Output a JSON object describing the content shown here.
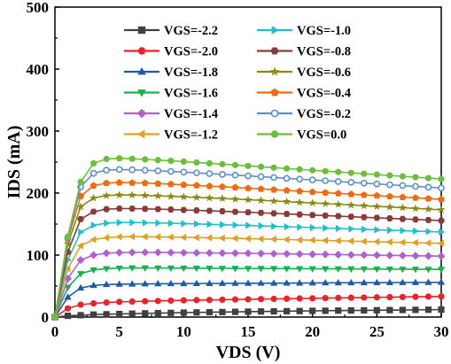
{
  "chart_data": {
    "type": "line",
    "xlabel": "VDS (V)",
    "ylabel": "IDS (mA)",
    "xlim": [
      0,
      30
    ],
    "ylim": [
      0,
      500
    ],
    "xticks": [
      0,
      5,
      10,
      15,
      20,
      25,
      30
    ],
    "yticks": [
      0,
      100,
      200,
      300,
      400,
      500
    ],
    "grid": false,
    "legend_position": "top-right, two columns",
    "x": [
      0,
      1,
      2,
      3,
      4,
      5,
      6,
      7,
      8,
      9,
      10,
      11,
      12,
      13,
      14,
      15,
      16,
      17,
      18,
      19,
      20,
      21,
      22,
      23,
      24,
      25,
      26,
      27,
      28,
      29,
      30
    ],
    "series": [
      {
        "name": "VGS=-2.2",
        "color": "#404040",
        "marker": "square",
        "values": [
          0,
          2,
          3,
          4,
          4.5,
          5,
          5.5,
          6,
          6.4,
          6.8,
          7.2,
          7.5,
          7.8,
          8.1,
          8.4,
          8.7,
          9,
          9.2,
          9.5,
          9.7,
          10,
          10.2,
          10.4,
          10.6,
          10.8,
          11,
          11.2,
          11.4,
          11.6,
          11.8,
          12
        ]
      },
      {
        "name": "VGS=-2.0",
        "color": "#e8232a",
        "marker": "circle",
        "values": [
          0,
          14,
          20,
          22,
          23.5,
          24.5,
          25,
          25.5,
          26,
          26.5,
          27,
          27.3,
          27.6,
          28,
          28.3,
          28.6,
          29,
          29.3,
          29.6,
          30,
          30.3,
          30.6,
          30.9,
          31.2,
          31.5,
          31.8,
          32.1,
          32.4,
          32.7,
          33,
          33.3
        ]
      },
      {
        "name": "VGS=-1.8",
        "color": "#1f5aaa",
        "marker": "triangle-up",
        "values": [
          0,
          32,
          47,
          51,
          52.5,
          53,
          53.3,
          53.5,
          53.7,
          53.9,
          54,
          54.1,
          54.2,
          54.3,
          54.4,
          54.5,
          54.6,
          54.7,
          54.8,
          54.9,
          55,
          55.1,
          55.2,
          55.3,
          55.4,
          55.5,
          55.6,
          55.7,
          55.8,
          55.9,
          56
        ]
      },
      {
        "name": "VGS=-1.6",
        "color": "#17b04b",
        "marker": "triangle-down",
        "values": [
          0,
          48,
          70,
          76,
          78,
          79,
          79.2,
          79.2,
          79.1,
          79,
          78.9,
          78.8,
          78.7,
          78.6,
          78.5,
          78.4,
          78.3,
          78.2,
          78.1,
          78,
          77.9,
          77.8,
          77.7,
          77.6,
          77.5,
          77.4,
          77.3,
          77.2,
          77.1,
          77,
          76.9
        ]
      },
      {
        "name": "VGS=-1.4",
        "color": "#b05fd0",
        "marker": "diamond",
        "values": [
          0,
          62,
          92,
          100,
          103,
          104,
          104.3,
          104.3,
          104.2,
          104,
          103.8,
          103.6,
          103.4,
          103.2,
          103,
          102.8,
          102.5,
          102.2,
          101.9,
          101.6,
          101.3,
          101,
          100.7,
          100.4,
          100.1,
          99.8,
          99.5,
          99.2,
          98.9,
          98.6,
          98.3
        ]
      },
      {
        "name": "VGS=-1.2",
        "color": "#e0a020",
        "marker": "triangle-left",
        "values": [
          0,
          78,
          115,
          125,
          128,
          129.5,
          129.8,
          129.6,
          129.3,
          129,
          128.6,
          128.2,
          127.8,
          127.4,
          127,
          126.5,
          126,
          125.5,
          125,
          124.5,
          124,
          123.5,
          123,
          122.5,
          122,
          121.5,
          121,
          120.5,
          120,
          119.5,
          119
        ]
      },
      {
        "name": "VGS=-1.0",
        "color": "#20c0c8",
        "marker": "triangle-right",
        "values": [
          0,
          92,
          137,
          148,
          151.5,
          152.5,
          152.5,
          152.2,
          151.8,
          151.3,
          150.8,
          150.2,
          149.6,
          149,
          148.4,
          147.8,
          147.1,
          146.4,
          145.7,
          145,
          144.3,
          143.6,
          142.9,
          142.2,
          141.5,
          140.8,
          140.1,
          139.4,
          138.7,
          138,
          137.3
        ]
      },
      {
        "name": "VGS=-0.8",
        "color": "#8b3a3a",
        "marker": "hexagon",
        "values": [
          0,
          105,
          158,
          170,
          174,
          175,
          175,
          174.6,
          174.1,
          173.5,
          172.8,
          172.1,
          171.4,
          170.6,
          169.8,
          169,
          168.2,
          167.3,
          166.4,
          165.5,
          164.6,
          163.7,
          162.8,
          161.9,
          161,
          160.1,
          159.2,
          158.3,
          157.4,
          156.5,
          155.6
        ]
      },
      {
        "name": "VGS=-0.6",
        "color": "#8a8a10",
        "marker": "star",
        "values": [
          0,
          118,
          178,
          192,
          196,
          197,
          196.8,
          196.2,
          195.5,
          194.7,
          193.9,
          193,
          192.1,
          191.2,
          190.2,
          189.2,
          188.2,
          187.2,
          186.2,
          185.1,
          184,
          182.9,
          181.8,
          180.7,
          179.6,
          178.5,
          177.4,
          176.3,
          175.2,
          174.1,
          173
        ]
      },
      {
        "name": "VGS=-0.4",
        "color": "#f06a10",
        "marker": "pentagon",
        "values": [
          0,
          125,
          195,
          212,
          216,
          217,
          216.6,
          216,
          215.2,
          214.3,
          213.3,
          212.3,
          211.2,
          210.1,
          209,
          207.8,
          206.6,
          205.4,
          204.2,
          203,
          201.8,
          200.6,
          199.4,
          198.2,
          197,
          195.8,
          194.6,
          193.4,
          192.2,
          191,
          189.8
        ]
      },
      {
        "name": "VGS=-0.2",
        "color": "#5f8fca",
        "marker": "circle-open",
        "values": [
          0,
          128,
          210,
          232,
          237,
          238,
          237.5,
          236.8,
          235.9,
          234.9,
          233.8,
          232.6,
          231.4,
          230.2,
          229,
          227.7,
          226.4,
          225.1,
          223.8,
          222.5,
          221.2,
          219.9,
          218.6,
          217.3,
          216,
          214.7,
          213.4,
          212.1,
          210.8,
          209.5,
          208.2
        ]
      },
      {
        "name": "VGS=0.0",
        "color": "#6cbf3a",
        "marker": "circle",
        "values": [
          0,
          130,
          218,
          248,
          255,
          256,
          255.3,
          254.3,
          253.2,
          252,
          250.7,
          249.4,
          248,
          246.6,
          245.2,
          243.8,
          242.4,
          241,
          239.6,
          238.2,
          236.8,
          235.4,
          234,
          232.6,
          231.2,
          229.8,
          228.4,
          227,
          225.6,
          224.2,
          222.8
        ]
      }
    ]
  }
}
